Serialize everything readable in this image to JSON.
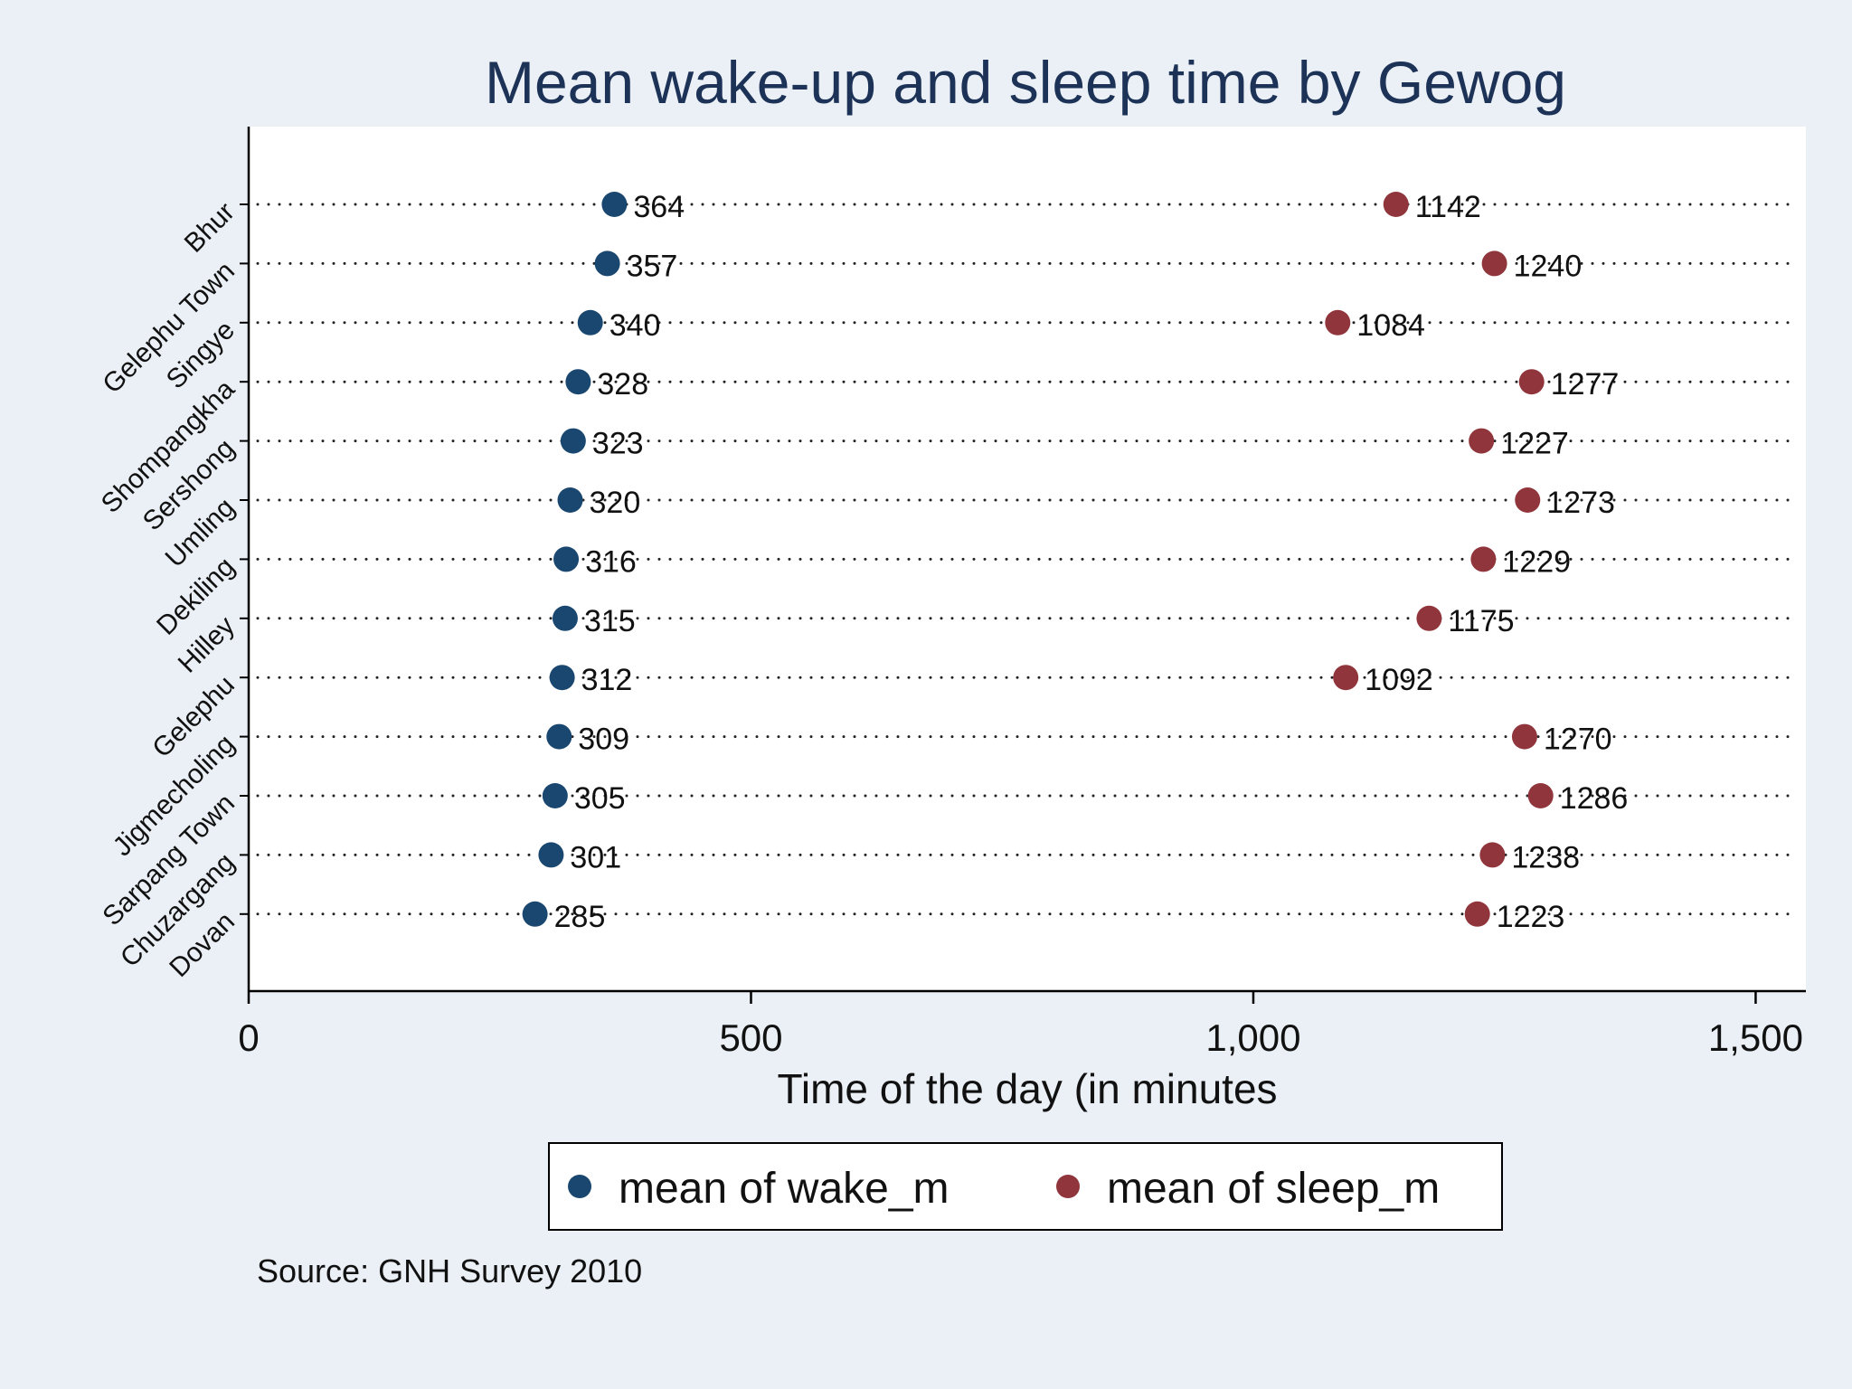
{
  "chart_data": {
    "type": "scatter",
    "title": "Mean wake-up and sleep time by Gewog",
    "xlabel": "Time of the day (in minutes",
    "ylabel": "",
    "xlim": [
      0,
      1550
    ],
    "xticks": [
      0,
      500,
      1000,
      1500
    ],
    "xtick_labels": [
      "0",
      "500",
      "1,000",
      "1,500"
    ],
    "categories": [
      "Bhur",
      "Gelephu Town",
      "Singye",
      "Shompangkha",
      "Sershong",
      "Umling",
      "Dekiling",
      "Hilley",
      "Gelephu",
      "Jigmecholing",
      "Sarpang Town",
      "Chuzargang",
      "Dovan"
    ],
    "series": [
      {
        "name": "mean of wake_m",
        "color": "#1a476f",
        "values": [
          364,
          357,
          340,
          328,
          323,
          320,
          316,
          315,
          312,
          309,
          305,
          301,
          285
        ]
      },
      {
        "name": "mean of sleep_m",
        "color": "#90353b",
        "values": [
          1142,
          1240,
          1084,
          1277,
          1227,
          1273,
          1229,
          1175,
          1092,
          1270,
          1286,
          1238,
          1223
        ]
      }
    ],
    "legend_position": "bottom",
    "grid": "dotted horizontal"
  },
  "source_note": "Source: GNH Survey 2010"
}
